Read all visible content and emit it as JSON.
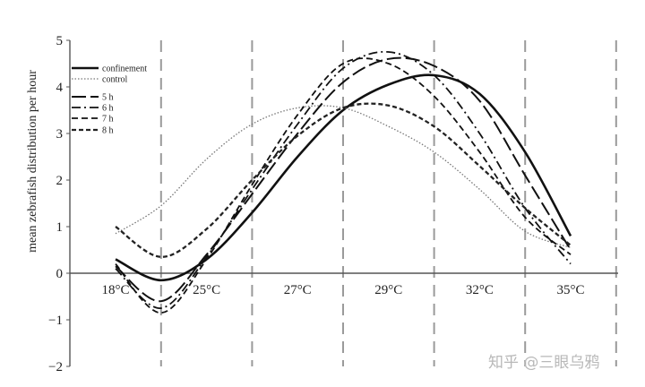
{
  "chart_data": {
    "type": "line",
    "ylabel": "mean zebrafish distribution per hour",
    "ylim": [
      -2,
      5
    ],
    "yticks": [
      "5",
      "4",
      "3",
      "2",
      "1",
      "0",
      "−1",
      "−2"
    ],
    "categories": [
      "18°C",
      "25°C",
      "27°C",
      "29°C",
      "32°C",
      "35°C"
    ],
    "x": [
      0,
      0.5,
      1,
      1.5,
      2,
      2.5,
      3,
      3.5,
      4,
      4.5,
      5
    ],
    "series": [
      {
        "name": "confinement",
        "style": "solid",
        "color": "#111111",
        "values": [
          0.3,
          -0.15,
          0.3,
          1.3,
          2.5,
          3.5,
          4.05,
          4.25,
          3.85,
          2.6,
          0.8
        ]
      },
      {
        "name": "control",
        "style": "dotted",
        "color": "#777777",
        "values": [
          0.85,
          1.45,
          2.45,
          3.2,
          3.55,
          3.55,
          3.15,
          2.6,
          1.8,
          0.9,
          0.55
        ]
      },
      {
        "name": "5 h",
        "style": "longdash",
        "color": "#111111",
        "values": [
          0.15,
          -0.6,
          0.4,
          1.7,
          3.0,
          4.1,
          4.6,
          4.45,
          3.7,
          2.1,
          0.5
        ]
      },
      {
        "name": "6 h",
        "style": "dashdot",
        "color": "#111111",
        "values": [
          0.1,
          -0.75,
          0.35,
          1.8,
          3.2,
          4.4,
          4.75,
          4.25,
          3.0,
          1.4,
          0.2
        ]
      },
      {
        "name": "7 h",
        "style": "dash",
        "color": "#111111",
        "values": [
          0.2,
          -0.85,
          0.3,
          1.9,
          3.4,
          4.5,
          4.5,
          3.8,
          2.6,
          1.2,
          0.4
        ]
      },
      {
        "name": "8 h",
        "style": "heavydash",
        "color": "#222222",
        "values": [
          1.0,
          0.35,
          0.95,
          2.0,
          2.95,
          3.55,
          3.6,
          3.15,
          2.3,
          1.4,
          0.6
        ]
      }
    ],
    "legend": "top-left",
    "grid": false,
    "divider_lines": "vertical dashed"
  },
  "watermark": "知乎 @三眼乌鸦"
}
